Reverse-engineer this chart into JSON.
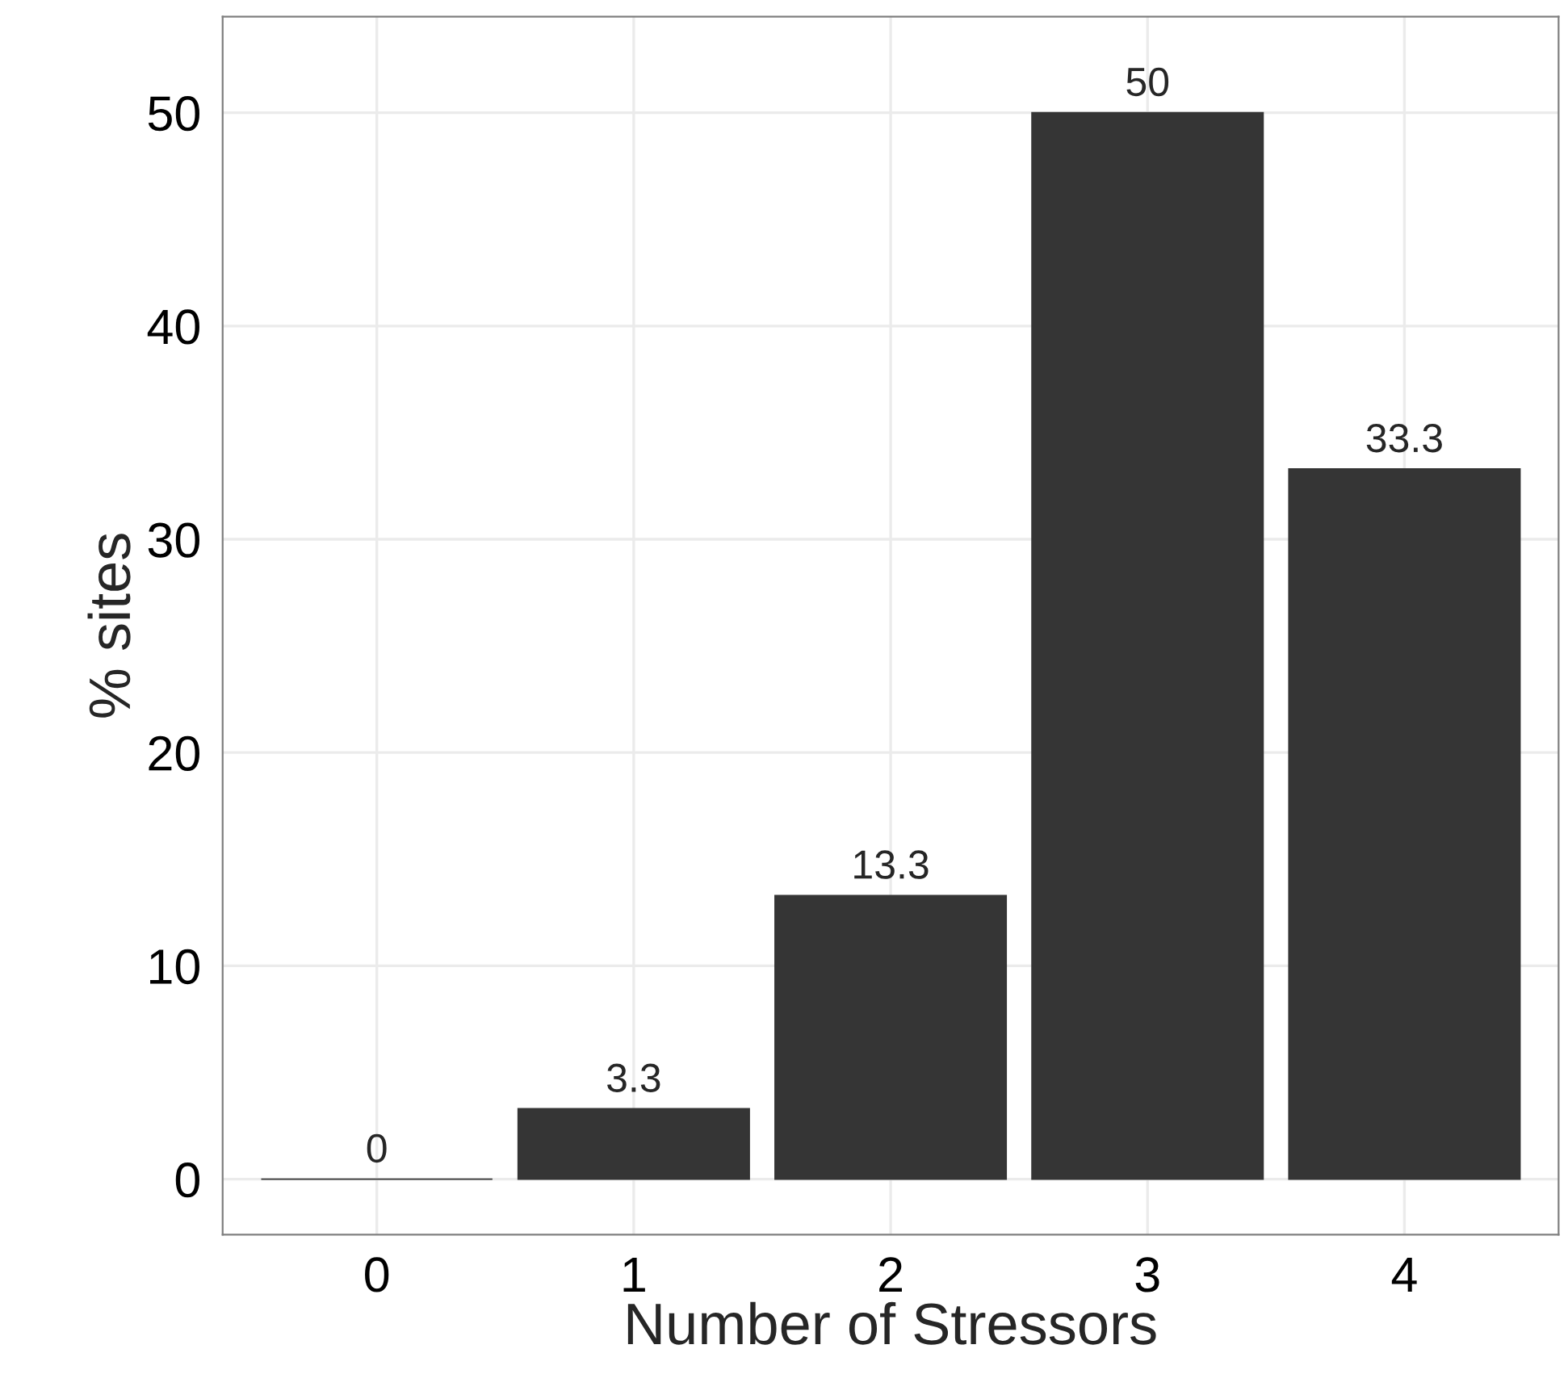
{
  "chart_data": {
    "type": "bar",
    "xlabel": "Number of Stressors",
    "ylabel": "% sites",
    "categories": [
      "0",
      "1",
      "2",
      "3",
      "4"
    ],
    "values": [
      0,
      3.3,
      13.3,
      50,
      33.3
    ],
    "color": "#353535",
    "ylim": [
      -2.6,
      54.5
    ],
    "yticks": [
      0,
      10,
      20,
      30,
      40,
      50
    ],
    "grid": true,
    "data_labels": true
  }
}
